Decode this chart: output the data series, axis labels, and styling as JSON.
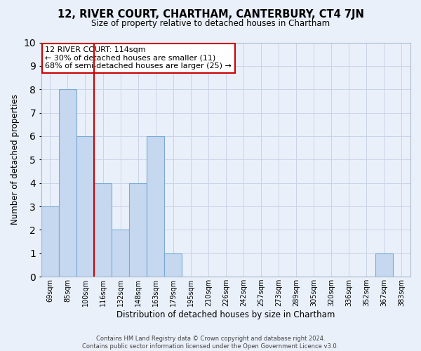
{
  "title": "12, RIVER COURT, CHARTHAM, CANTERBURY, CT4 7JN",
  "subtitle": "Size of property relative to detached houses in Chartham",
  "xlabel": "Distribution of detached houses by size in Chartham",
  "ylabel": "Number of detached properties",
  "footer_line1": "Contains HM Land Registry data © Crown copyright and database right 2024.",
  "footer_line2": "Contains public sector information licensed under the Open Government Licence v3.0.",
  "bin_labels": [
    "69sqm",
    "85sqm",
    "100sqm",
    "116sqm",
    "132sqm",
    "148sqm",
    "163sqm",
    "179sqm",
    "195sqm",
    "210sqm",
    "226sqm",
    "242sqm",
    "257sqm",
    "273sqm",
    "289sqm",
    "305sqm",
    "320sqm",
    "336sqm",
    "352sqm",
    "367sqm",
    "383sqm"
  ],
  "bar_values": [
    3,
    8,
    6,
    4,
    2,
    4,
    6,
    1,
    0,
    0,
    0,
    0,
    0,
    0,
    0,
    0,
    0,
    0,
    0,
    1,
    0
  ],
  "bar_color": "#c5d8f0",
  "bar_edge_color": "#7aaad4",
  "grid_color": "#c8d4e8",
  "background_color": "#eaf0fa",
  "property_line_color": "#cc0000",
  "property_line_x": 3,
  "annotation_title": "12 RIVER COURT: 114sqm",
  "annotation_line1": "← 30% of detached houses are smaller (11)",
  "annotation_line2": "68% of semi-detached houses are larger (25) →",
  "annotation_box_color": "#ffffff",
  "annotation_box_edge_color": "#cc0000",
  "ylim": [
    0,
    10
  ],
  "yticks": [
    0,
    1,
    2,
    3,
    4,
    5,
    6,
    7,
    8,
    9,
    10
  ]
}
